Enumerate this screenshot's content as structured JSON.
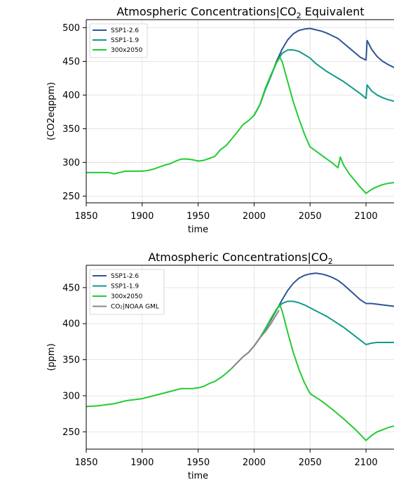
{
  "chart_data": [
    {
      "type": "line",
      "title": "Atmospheric Concentrations|CO",
      "title_sub": "2",
      "title_suffix": " Equivalent",
      "xlabel": "time",
      "ylabel": "(CO2eqppm)",
      "xlim": [
        1850,
        2125
      ],
      "ylim": [
        240,
        512
      ],
      "xticks": [
        1850,
        1900,
        1950,
        2000,
        2050,
        2100
      ],
      "yticks": [
        250,
        300,
        350,
        400,
        450,
        500
      ],
      "grid": true,
      "legend_position": "top-left",
      "series": [
        {
          "name": "SSP1-2.6",
          "color": "#2e5597",
          "x": [
            2000,
            2005,
            2010,
            2015,
            2020,
            2025,
            2030,
            2035,
            2040,
            2045,
            2050,
            2055,
            2060,
            2065,
            2070,
            2075,
            2080,
            2085,
            2090,
            2095,
            2100,
            2101,
            2105,
            2110,
            2115,
            2120,
            2125
          ],
          "y": [
            370,
            385,
            408,
            428,
            450,
            468,
            482,
            491,
            496,
            498,
            499,
            497,
            495,
            492,
            488,
            484,
            477,
            470,
            463,
            456,
            452,
            481,
            468,
            457,
            450,
            445,
            441
          ]
        },
        {
          "name": "SSP1-1.9",
          "color": "#0f9a8a",
          "x": [
            2000,
            2005,
            2010,
            2015,
            2020,
            2025,
            2030,
            2035,
            2040,
            2045,
            2050,
            2055,
            2060,
            2065,
            2070,
            2075,
            2080,
            2085,
            2090,
            2095,
            2100,
            2101,
            2105,
            2110,
            2115,
            2120,
            2125
          ],
          "y": [
            370,
            385,
            408,
            428,
            448,
            462,
            467,
            467,
            465,
            460,
            455,
            447,
            441,
            435,
            430,
            425,
            420,
            414,
            408,
            402,
            395,
            415,
            406,
            400,
            396,
            393,
            391
          ]
        },
        {
          "name": "300x2050",
          "color": "#22cc33",
          "x": [
            1850,
            1855,
            1860,
            1865,
            1870,
            1875,
            1880,
            1885,
            1890,
            1895,
            1900,
            1905,
            1910,
            1915,
            1920,
            1925,
            1930,
            1935,
            1940,
            1945,
            1950,
            1955,
            1960,
            1965,
            1970,
            1975,
            1980,
            1985,
            1990,
            1995,
            2000,
            2005,
            2010,
            2015,
            2020,
            2023,
            2025,
            2030,
            2035,
            2040,
            2045,
            2050,
            2055,
            2060,
            2065,
            2070,
            2075,
            2077,
            2080,
            2085,
            2090,
            2095,
            2100,
            2105,
            2110,
            2115,
            2120,
            2125
          ],
          "y": [
            285,
            285,
            285,
            285,
            285,
            283,
            285,
            287,
            287,
            287,
            287,
            288,
            290,
            293,
            296,
            298,
            302,
            305,
            305,
            304,
            302,
            303,
            306,
            309,
            319,
            325,
            335,
            345,
            356,
            362,
            370,
            385,
            410,
            430,
            448,
            456,
            450,
            420,
            390,
            365,
            342,
            323,
            317,
            311,
            305,
            299,
            292,
            308,
            296,
            283,
            273,
            263,
            254,
            260,
            264,
            267,
            269,
            270
          ]
        }
      ]
    },
    {
      "type": "line",
      "title": "Atmospheric Concentrations|CO",
      "title_sub": "2",
      "title_suffix": "",
      "xlabel": "time",
      "ylabel": "(ppm)",
      "xlim": [
        1850,
        2125
      ],
      "ylim": [
        226,
        481
      ],
      "xticks": [
        1850,
        1900,
        1950,
        2000,
        2050,
        2100
      ],
      "yticks": [
        250,
        300,
        350,
        400,
        450
      ],
      "grid": true,
      "legend_position": "top-left",
      "series": [
        {
          "name": "SSP1-2.6",
          "color": "#2e5597",
          "x": [
            2000,
            2005,
            2010,
            2015,
            2020,
            2025,
            2030,
            2035,
            2040,
            2045,
            2050,
            2055,
            2060,
            2065,
            2070,
            2075,
            2080,
            2085,
            2090,
            2095,
            2100,
            2105,
            2110,
            2115,
            2120,
            2125
          ],
          "y": [
            369,
            380,
            392,
            405,
            419,
            433,
            446,
            456,
            463,
            467,
            469,
            470,
            469,
            467,
            464,
            460,
            454,
            447,
            440,
            433,
            428,
            428,
            427,
            426,
            425,
            424
          ]
        },
        {
          "name": "SSP1-1.9",
          "color": "#0f9a8a",
          "x": [
            2000,
            2005,
            2010,
            2015,
            2020,
            2025,
            2030,
            2035,
            2040,
            2045,
            2050,
            2055,
            2060,
            2065,
            2070,
            2075,
            2080,
            2085,
            2090,
            2095,
            2100,
            2105,
            2110,
            2115,
            2120,
            2125
          ],
          "y": [
            369,
            380,
            393,
            407,
            420,
            428,
            431,
            431,
            429,
            426,
            422,
            418,
            414,
            410,
            405,
            400,
            395,
            389,
            383,
            377,
            371,
            373,
            374,
            374,
            374,
            374
          ]
        },
        {
          "name": "300x2050",
          "color": "#22cc33",
          "x": [
            1850,
            1860,
            1870,
            1875,
            1880,
            1885,
            1890,
            1900,
            1910,
            1920,
            1930,
            1935,
            1940,
            1945,
            1950,
            1955,
            1960,
            1965,
            1970,
            1975,
            1980,
            1985,
            1990,
            1995,
            2000,
            2005,
            2010,
            2015,
            2020,
            2023,
            2025,
            2030,
            2035,
            2040,
            2045,
            2050,
            2060,
            2070,
            2080,
            2090,
            2100,
            2105,
            2110,
            2115,
            2120,
            2125
          ],
          "y": [
            285,
            286,
            288,
            289,
            291,
            293,
            294,
            296,
            300,
            304,
            308,
            310,
            310,
            310,
            311,
            313,
            317,
            320,
            325,
            331,
            338,
            346,
            354,
            360,
            369,
            380,
            392,
            407,
            420,
            426,
            418,
            388,
            360,
            337,
            318,
            303,
            293,
            281,
            268,
            254,
            238,
            245,
            250,
            253,
            256,
            258
          ]
        },
        {
          "name": "CO₂|NOAA GML",
          "color": "#888888",
          "x": [
            1980,
            1985,
            1990,
            1995,
            2000,
            2005,
            2010,
            2015,
            2020,
            2022
          ],
          "y": [
            338,
            346,
            354,
            360,
            369,
            380,
            389,
            400,
            413,
            418
          ]
        }
      ]
    }
  ]
}
